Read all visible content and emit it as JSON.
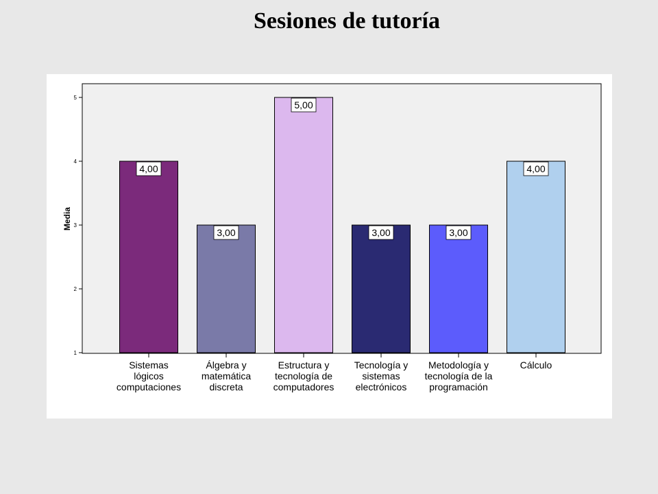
{
  "title": "Sesiones de tutoría",
  "chart_data": {
    "type": "bar",
    "title": "Sesiones de tutoría",
    "ylabel": "Media",
    "xlabel": "",
    "ylim": [
      1,
      5
    ],
    "yticks": [
      "1",
      "2",
      "3",
      "4",
      "5"
    ],
    "categories": [
      [
        "Sistemas",
        "lógicos",
        "computaciones"
      ],
      [
        "Álgebra y",
        "matemática",
        "discreta"
      ],
      [
        "Estructura y",
        "tecnología de",
        "computadores"
      ],
      [
        "Tecnología y",
        "sistemas",
        "electrónicos"
      ],
      [
        "Metodología y",
        "tecnología de la",
        "programación"
      ],
      [
        "Cálculo"
      ]
    ],
    "values": [
      4,
      3,
      5,
      3,
      3,
      4
    ],
    "value_labels": [
      "4,00",
      "3,00",
      "5,00",
      "3,00",
      "3,00",
      "4,00"
    ],
    "colors": [
      "#7b2a7b",
      "#7a7aa8",
      "#dcb8ee",
      "#2a2a72",
      "#5c5cfc",
      "#b0d0ee"
    ],
    "grid": false
  }
}
